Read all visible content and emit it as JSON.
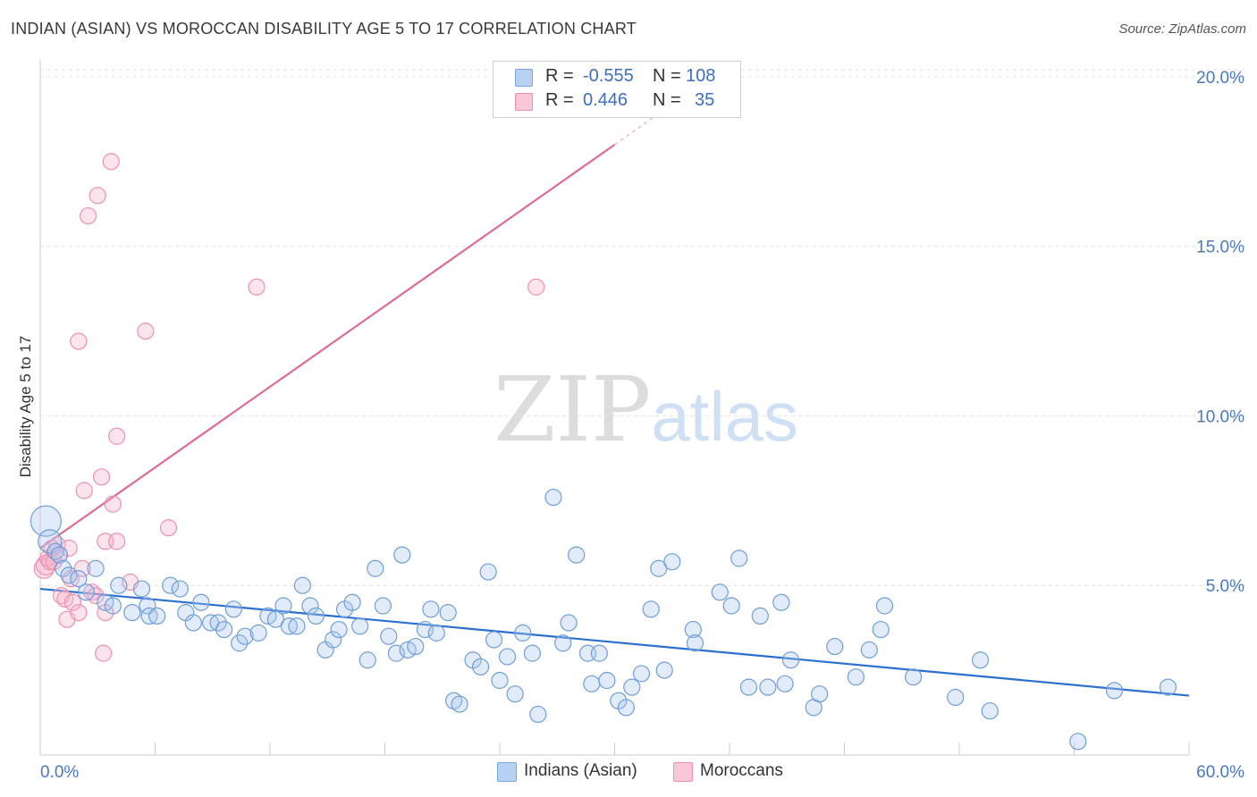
{
  "title": "INDIAN (ASIAN) VS MOROCCAN DISABILITY AGE 5 TO 17 CORRELATION CHART",
  "source": "Source: ZipAtlas.com",
  "watermark": {
    "zip": "ZIP",
    "atlas": "atlas"
  },
  "legend": {
    "rows": [
      {
        "r_label": "R =",
        "r_value": "-0.555",
        "n_label": "N =",
        "n_value": "108",
        "color": "#a9c6ef"
      },
      {
        "r_label": "R =",
        "r_value": "0.446",
        "n_label": "N =",
        "n_value": "35",
        "color": "#f5b3c8"
      }
    ]
  },
  "chart_data": {
    "type": "scatter",
    "title": "INDIAN (ASIAN) VS MOROCCAN DISABILITY AGE 5 TO 17 CORRELATION CHART",
    "xlabel": "",
    "ylabel": "Disability Age 5 to 17",
    "xlim": [
      0,
      60
    ],
    "ylim": [
      0,
      20.5
    ],
    "x_tick_labels": [
      "0.0%",
      "60.0%"
    ],
    "y_ticks": [
      5,
      10,
      15,
      20
    ],
    "y_tick_labels": [
      "5.0%",
      "10.0%",
      "15.0%",
      "20.0%"
    ],
    "grid": true,
    "legend_position": "top-center",
    "series": [
      {
        "name": "Indians (Asian)",
        "color": "#7aa6e0",
        "line_color": "#2b6fcf",
        "trend": {
          "x": [
            0,
            60
          ],
          "y": [
            4.9,
            1.75
          ]
        },
        "points": [
          [
            0.3,
            6.9
          ],
          [
            0.5,
            6.3
          ],
          [
            0.8,
            6.0
          ],
          [
            1.0,
            5.9
          ],
          [
            1.2,
            5.5
          ],
          [
            1.5,
            5.3
          ],
          [
            2.0,
            5.2
          ],
          [
            2.4,
            4.8
          ],
          [
            2.9,
            5.5
          ],
          [
            3.4,
            4.5
          ],
          [
            3.8,
            4.4
          ],
          [
            4.1,
            5.0
          ],
          [
            4.8,
            4.2
          ],
          [
            5.3,
            4.9
          ],
          [
            5.6,
            4.4
          ],
          [
            5.7,
            4.1
          ],
          [
            6.1,
            4.1
          ],
          [
            6.8,
            5.0
          ],
          [
            7.3,
            4.9
          ],
          [
            7.6,
            4.2
          ],
          [
            8.0,
            3.9
          ],
          [
            8.4,
            4.5
          ],
          [
            8.9,
            3.9
          ],
          [
            9.3,
            3.9
          ],
          [
            9.6,
            3.7
          ],
          [
            10.1,
            4.3
          ],
          [
            10.4,
            3.3
          ],
          [
            10.7,
            3.5
          ],
          [
            11.4,
            3.6
          ],
          [
            11.9,
            4.1
          ],
          [
            12.3,
            4.0
          ],
          [
            12.7,
            4.4
          ],
          [
            13.0,
            3.8
          ],
          [
            13.4,
            3.8
          ],
          [
            13.7,
            5.0
          ],
          [
            14.1,
            4.4
          ],
          [
            14.4,
            4.1
          ],
          [
            14.9,
            3.1
          ],
          [
            15.3,
            3.4
          ],
          [
            15.6,
            3.7
          ],
          [
            15.9,
            4.3
          ],
          [
            16.3,
            4.5
          ],
          [
            16.7,
            3.8
          ],
          [
            17.1,
            2.8
          ],
          [
            17.5,
            5.5
          ],
          [
            17.9,
            4.4
          ],
          [
            18.2,
            3.5
          ],
          [
            18.6,
            3.0
          ],
          [
            18.9,
            5.9
          ],
          [
            19.2,
            3.1
          ],
          [
            19.6,
            3.2
          ],
          [
            20.1,
            3.7
          ],
          [
            20.4,
            4.3
          ],
          [
            20.7,
            3.6
          ],
          [
            21.3,
            4.2
          ],
          [
            21.6,
            1.6
          ],
          [
            21.9,
            1.5
          ],
          [
            22.6,
            2.8
          ],
          [
            23.0,
            2.6
          ],
          [
            23.4,
            5.4
          ],
          [
            23.7,
            3.4
          ],
          [
            24.0,
            2.2
          ],
          [
            24.4,
            2.9
          ],
          [
            24.8,
            1.8
          ],
          [
            25.2,
            3.6
          ],
          [
            25.7,
            3.0
          ],
          [
            26.0,
            1.2
          ],
          [
            26.8,
            7.6
          ],
          [
            27.3,
            3.3
          ],
          [
            27.6,
            3.9
          ],
          [
            28.0,
            5.9
          ],
          [
            28.6,
            3.0
          ],
          [
            28.8,
            2.1
          ],
          [
            29.2,
            3.0
          ],
          [
            29.6,
            2.2
          ],
          [
            30.2,
            1.6
          ],
          [
            30.6,
            1.4
          ],
          [
            30.9,
            2.0
          ],
          [
            31.4,
            2.4
          ],
          [
            31.9,
            4.3
          ],
          [
            32.3,
            5.5
          ],
          [
            32.6,
            2.5
          ],
          [
            33.0,
            5.7
          ],
          [
            34.1,
            3.7
          ],
          [
            34.2,
            3.3
          ],
          [
            35.5,
            4.8
          ],
          [
            36.1,
            4.4
          ],
          [
            36.5,
            5.8
          ],
          [
            37.0,
            2.0
          ],
          [
            37.6,
            4.1
          ],
          [
            38.0,
            2.0
          ],
          [
            38.7,
            4.5
          ],
          [
            38.9,
            2.1
          ],
          [
            39.2,
            2.8
          ],
          [
            40.4,
            1.4
          ],
          [
            40.7,
            1.8
          ],
          [
            41.5,
            3.2
          ],
          [
            42.6,
            2.3
          ],
          [
            43.3,
            3.1
          ],
          [
            43.9,
            3.7
          ],
          [
            44.1,
            4.4
          ],
          [
            45.6,
            2.3
          ],
          [
            47.8,
            1.7
          ],
          [
            49.1,
            2.8
          ],
          [
            49.6,
            1.3
          ],
          [
            54.2,
            0.4
          ],
          [
            56.1,
            1.9
          ],
          [
            58.9,
            2.0
          ]
        ]
      },
      {
        "name": "Moroccans",
        "color": "#f08fb0",
        "line_color": "#e06a94",
        "trend": {
          "x": [
            0,
            30
          ],
          "y": [
            6.1,
            18.0
          ]
        },
        "points": [
          [
            0.2,
            5.5
          ],
          [
            0.3,
            5.6
          ],
          [
            0.4,
            5.8
          ],
          [
            0.5,
            5.7
          ],
          [
            0.6,
            6.1
          ],
          [
            0.7,
            5.7
          ],
          [
            0.9,
            6.2
          ],
          [
            1.0,
            5.9
          ],
          [
            1.1,
            4.7
          ],
          [
            1.3,
            4.6
          ],
          [
            1.4,
            4.0
          ],
          [
            1.5,
            6.1
          ],
          [
            1.6,
            5.2
          ],
          [
            1.7,
            4.5
          ],
          [
            2.0,
            4.2
          ],
          [
            2.0,
            12.2
          ],
          [
            2.2,
            5.5
          ],
          [
            2.3,
            7.8
          ],
          [
            2.5,
            15.9
          ],
          [
            2.7,
            4.8
          ],
          [
            2.9,
            4.7
          ],
          [
            3.0,
            16.5
          ],
          [
            3.2,
            8.2
          ],
          [
            3.3,
            3.0
          ],
          [
            3.4,
            6.3
          ],
          [
            3.4,
            4.2
          ],
          [
            3.7,
            17.5
          ],
          [
            3.8,
            7.4
          ],
          [
            4.0,
            6.3
          ],
          [
            4.0,
            9.4
          ],
          [
            4.7,
            5.1
          ],
          [
            5.5,
            12.5
          ],
          [
            6.7,
            6.7
          ],
          [
            11.3,
            13.8
          ],
          [
            25.9,
            13.8
          ]
        ]
      }
    ]
  }
}
